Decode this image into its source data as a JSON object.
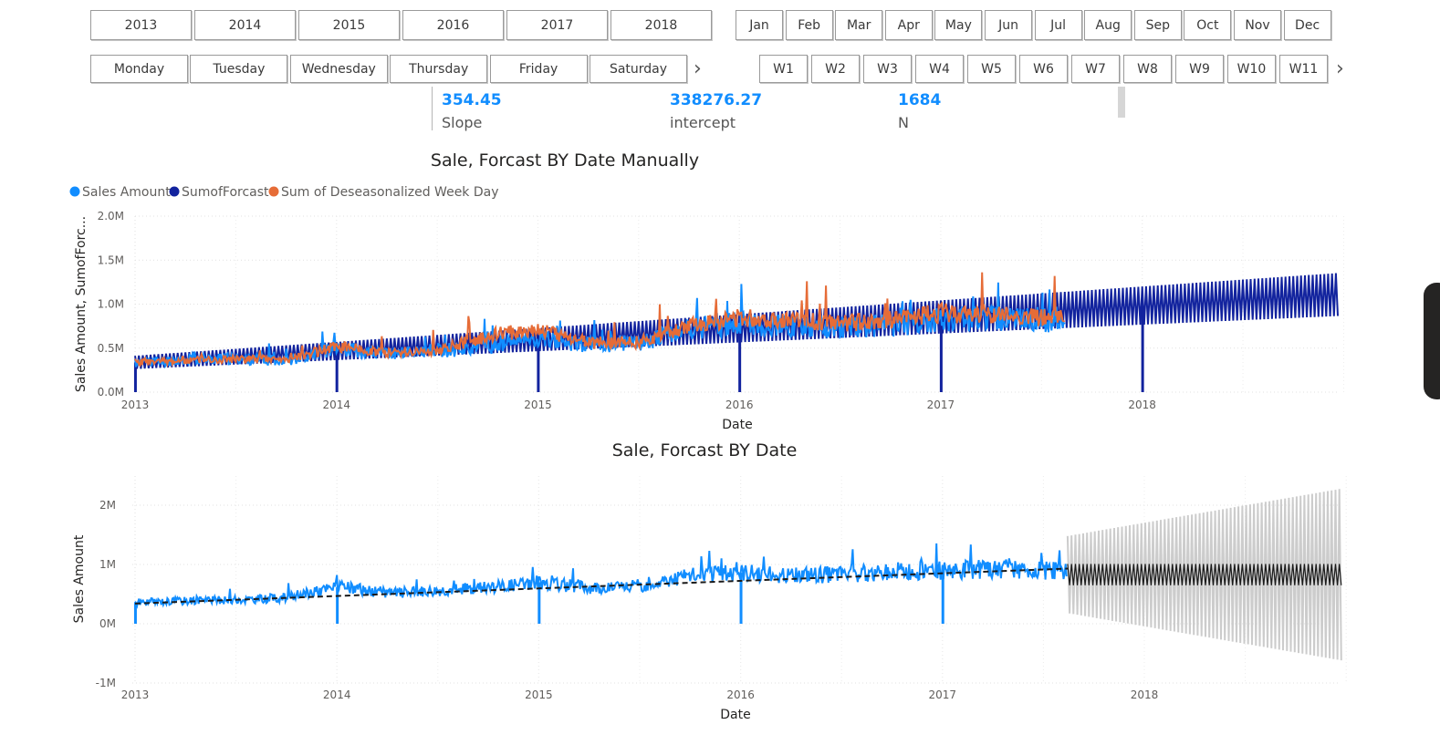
{
  "slicers": {
    "years": [
      "2013",
      "2014",
      "2015",
      "2016",
      "2017",
      "2018"
    ],
    "months": [
      "Jan",
      "Feb",
      "Mar",
      "Apr",
      "May",
      "Jun",
      "Jul",
      "Aug",
      "Sep",
      "Oct",
      "Nov",
      "Dec"
    ],
    "weekdays": [
      "Monday",
      "Tuesday",
      "Wednesday",
      "Thursday",
      "Friday",
      "Saturday"
    ],
    "weeks": [
      "W1",
      "W2",
      "W3",
      "W4",
      "W5",
      "W6",
      "W7",
      "W8",
      "W9",
      "W10",
      "W11"
    ]
  },
  "kpis": {
    "slope": {
      "value": "354.45",
      "label": "Slope"
    },
    "intercept": {
      "value": "338276.27",
      "label": "intercept"
    },
    "n": {
      "value": "1684",
      "label": "N"
    }
  },
  "colors": {
    "sales": "#118dff",
    "forecast": "#12239e",
    "deseason": "#e66c37",
    "band": "#cccccc",
    "forecast_line": "#1a1a1a",
    "trend": "#1a1a1a"
  },
  "chart_data": [
    {
      "type": "line",
      "title": "Sale, Forcast BY Date Manually",
      "xlabel": "Date",
      "ylabel": "Sales Amount, SumofForc...",
      "x_ticks": [
        "2013",
        "2014",
        "2015",
        "2016",
        "2017",
        "2018"
      ],
      "y_ticks": [
        "0.0M",
        "0.5M",
        "1.0M",
        "1.5M",
        "2.0M"
      ],
      "ylim": [
        0,
        2000000
      ],
      "xlim": [
        2013.0,
        2018.98
      ],
      "grid": true,
      "legend": "top-left",
      "series": [
        {
          "name": "Sales Amount",
          "x": [
            2013.0,
            2013.25,
            2013.5,
            2013.75,
            2014.0,
            2014.25,
            2014.5,
            2014.75,
            2015.0,
            2015.25,
            2015.5,
            2015.75,
            2016.0,
            2016.25,
            2016.5,
            2016.75,
            2017.0,
            2017.25,
            2017.5,
            2017.62
          ],
          "values": [
            330000,
            370000,
            380000,
            360000,
            500000,
            440000,
            470000,
            520000,
            620000,
            540000,
            560000,
            720000,
            780000,
            760000,
            740000,
            760000,
            820000,
            850000,
            820000,
            830000
          ]
        },
        {
          "name": "SumofForcast",
          "x": [
            2013.0,
            2018.98
          ],
          "values": [
            338276,
            1110000
          ]
        },
        {
          "name": "Sum of Deseasonalized Week Day",
          "x": [
            2013.0,
            2013.25,
            2013.5,
            2013.75,
            2014.0,
            2014.25,
            2014.5,
            2014.75,
            2015.0,
            2015.25,
            2015.5,
            2015.75,
            2016.0,
            2016.25,
            2016.5,
            2016.75,
            2017.0,
            2017.25,
            2017.5,
            2017.62
          ],
          "values": [
            340000,
            360000,
            380000,
            370000,
            520000,
            450000,
            470000,
            640000,
            720000,
            560000,
            570000,
            750000,
            850000,
            820000,
            780000,
            820000,
            900000,
            880000,
            850000,
            860000
          ]
        }
      ]
    },
    {
      "type": "line",
      "title": "Sale, Forcast BY Date",
      "xlabel": "Date",
      "ylabel": "Sales Amount",
      "x_ticks": [
        "2013",
        "2014",
        "2015",
        "2016",
        "2017",
        "2018"
      ],
      "y_ticks": [
        "-1M",
        "0M",
        "1M",
        "2M"
      ],
      "ylim": [
        -1000000,
        2400000
      ],
      "xlim": [
        2013.0,
        2018.98
      ],
      "grid": true,
      "series": [
        {
          "name": "Sales Amount",
          "x": [
            2013.0,
            2013.25,
            2013.5,
            2013.75,
            2014.0,
            2014.25,
            2014.5,
            2014.75,
            2015.0,
            2015.25,
            2015.5,
            2015.75,
            2016.0,
            2016.25,
            2016.5,
            2016.75,
            2017.0,
            2017.25,
            2017.5,
            2017.62
          ],
          "values": [
            360000,
            390000,
            400000,
            440000,
            620000,
            520000,
            560000,
            620000,
            700000,
            610000,
            640000,
            820000,
            860000,
            820000,
            830000,
            880000,
            900000,
            920000,
            900000,
            880000
          ]
        },
        {
          "x": [
            2013.0,
            2017.62
          ],
          "values": [
            340000,
            930000
          ]
        },
        {
          "x": [
            2017.62,
            2018.98
          ],
          "values": [
            830000,
            830000
          ],
          "amplitude": [
            180000,
            180000
          ]
        },
        {
          "x": [
            2017.62,
            2018.98
          ],
          "values": [
            830000,
            830000
          ],
          "amplitude": [
            650000,
            1450000
          ]
        }
      ]
    }
  ]
}
